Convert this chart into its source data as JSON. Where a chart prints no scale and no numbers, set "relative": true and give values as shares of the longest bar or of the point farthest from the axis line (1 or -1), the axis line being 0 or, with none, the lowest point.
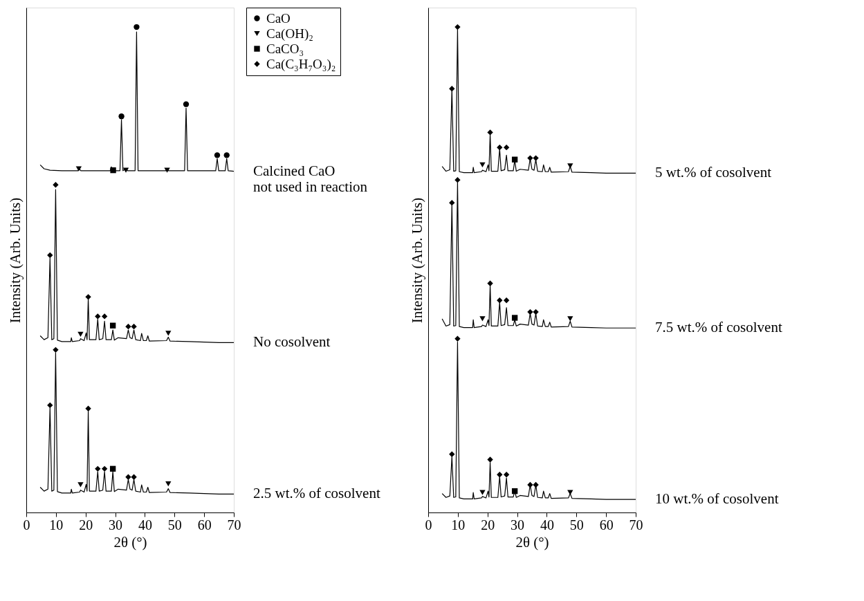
{
  "chart_data": [
    {
      "type": "line",
      "xlabel": "2θ (°)",
      "ylabel": "Intensity (Arb. Units)",
      "xlim": [
        0,
        70
      ],
      "xticks": [
        0,
        10,
        20,
        30,
        40,
        50,
        60,
        70
      ],
      "relative": true,
      "legend": "right",
      "grid": false,
      "series": [
        {
          "name": "Calcined CaO\nnot used in reaction",
          "color": "#000000",
          "x": [
            4.7,
            6,
            8,
            12,
            17.4,
            17.9,
            18.4,
            28.3,
            28.7,
            29.1,
            31.6,
            32.1,
            32.6,
            33.6,
            34.2,
            36.7,
            37.2,
            37.7,
            47.1,
            47.5,
            48,
            53.4,
            53.9,
            54.4,
            63.9,
            64.4,
            64.9,
            67.1,
            67.6,
            68.1,
            70
          ],
          "values": [
            0.716,
            0.708,
            0.705,
            0.704,
            0.704,
            0.708,
            0.704,
            0.704,
            0.712,
            0.704,
            0.704,
            0.809,
            0.704,
            0.708,
            0.704,
            0.704,
            0.99,
            0.704,
            0.704,
            0.707,
            0.704,
            0.704,
            0.833,
            0.704,
            0.704,
            0.729,
            0.704,
            0.704,
            0.729,
            0.704,
            0.703
          ]
        },
        {
          "name": "No cosolvent",
          "color": "#000000",
          "x": [
            4.7,
            6,
            7.3,
            8.0,
            8.6,
            9.3,
            9.9,
            10.5,
            12,
            15,
            15.2,
            15.5,
            18,
            18.3,
            19.5,
            20.2,
            20.5,
            20.9,
            21.3,
            23.5,
            24.1,
            24.6,
            25.8,
            26.4,
            26.9,
            28.7,
            29.2,
            29.7,
            31,
            33.8,
            34.4,
            35,
            35.7,
            36.3,
            36.9,
            38.5,
            38.9,
            39.5,
            40.5,
            41,
            41.5,
            47.3,
            47.9,
            48.5,
            55,
            60,
            65,
            70
          ],
          "values": [
            0.364,
            0.356,
            0.36,
            0.524,
            0.356,
            0.358,
            0.665,
            0.355,
            0.352,
            0.352,
            0.36,
            0.352,
            0.354,
            0.358,
            0.354,
            0.37,
            0.356,
            0.44,
            0.356,
            0.356,
            0.398,
            0.356,
            0.358,
            0.394,
            0.356,
            0.356,
            0.376,
            0.355,
            0.36,
            0.358,
            0.376,
            0.36,
            0.358,
            0.376,
            0.356,
            0.354,
            0.369,
            0.354,
            0.354,
            0.364,
            0.353,
            0.354,
            0.361,
            0.353,
            0.352,
            0.351,
            0.35,
            0.35
          ]
        },
        {
          "name": "2.5 wt.% of cosolvent",
          "color": "#000000",
          "x": [
            4.7,
            6,
            7.3,
            8.0,
            8.6,
            9.3,
            9.9,
            10.5,
            12,
            15,
            15.2,
            15.5,
            18,
            18.3,
            19.5,
            20.2,
            20.5,
            20.9,
            21.3,
            23.5,
            24.1,
            24.6,
            25.8,
            26.4,
            26.9,
            28.7,
            29.2,
            29.7,
            31,
            33.8,
            34.4,
            35,
            35.7,
            36.3,
            36.9,
            38.5,
            38.9,
            39.5,
            40.5,
            41,
            41.5,
            47.3,
            47.9,
            48.5,
            55,
            60,
            65,
            70
          ],
          "values": [
            0.052,
            0.044,
            0.048,
            0.216,
            0.044,
            0.046,
            0.329,
            0.043,
            0.04,
            0.04,
            0.048,
            0.04,
            0.042,
            0.046,
            0.042,
            0.058,
            0.044,
            0.209,
            0.044,
            0.044,
            0.084,
            0.044,
            0.046,
            0.084,
            0.044,
            0.044,
            0.084,
            0.043,
            0.048,
            0.046,
            0.068,
            0.048,
            0.046,
            0.068,
            0.044,
            0.042,
            0.057,
            0.042,
            0.042,
            0.052,
            0.041,
            0.042,
            0.049,
            0.041,
            0.04,
            0.039,
            0.038,
            0.038
          ]
        },
        {
          "type": "scatter",
          "name": "CaO",
          "marker": "circle",
          "color": "#000000",
          "x": [
            32.1,
            37.2,
            53.9,
            64.4,
            67.6
          ],
          "values": [
            0.816,
            1.0,
            0.841,
            0.736,
            0.736
          ]
        },
        {
          "type": "scatter",
          "name": "Ca(OH)₂",
          "marker": "triangle",
          "color": "#000000",
          "x": [
            17.7,
            33.6,
            47.5,
            18.3,
            47.9,
            18.3,
            47.9
          ],
          "values": [
            0.708,
            0.705,
            0.705,
            0.367,
            0.369,
            0.057,
            0.059
          ]
        },
        {
          "type": "scatter",
          "name": "CaCO₃",
          "marker": "square",
          "color": "#000000",
          "x": [
            29.3,
            29.2,
            29.2
          ],
          "values": [
            0.705,
            0.385,
            0.09
          ]
        },
        {
          "type": "scatter",
          "name": "Ca(C₃H₇O₃)₂",
          "marker": "diamond",
          "color": "#000000",
          "x": [
            8.0,
            9.9,
            20.9,
            24.1,
            26.4,
            34.4,
            36.3,
            8.0,
            9.9,
            20.9,
            24.1,
            26.4,
            34.4,
            36.3
          ],
          "values": [
            0.53,
            0.675,
            0.444,
            0.404,
            0.404,
            0.383,
            0.383,
            0.221,
            0.335,
            0.214,
            0.09,
            0.09,
            0.073,
            0.073
          ]
        }
      ]
    },
    {
      "type": "line",
      "xlabel": "2θ (°)",
      "ylabel": "Intensity (Arb. Units)",
      "xlim": [
        0,
        70
      ],
      "xticks": [
        0,
        10,
        20,
        30,
        40,
        50,
        60,
        70
      ],
      "relative": true,
      "grid": false,
      "series": [
        {
          "name": "5 wt.% of cosolvent",
          "color": "#000000",
          "x": [
            4.7,
            6,
            7.3,
            8.0,
            8.6,
            9.3,
            9.9,
            10.5,
            12,
            15,
            15.2,
            15.5,
            18,
            18.3,
            19.5,
            20.2,
            20.5,
            20.9,
            21.3,
            23.5,
            24.1,
            24.6,
            25.8,
            26.4,
            26.9,
            28.7,
            29.2,
            29.7,
            31,
            33.8,
            34.4,
            35,
            35.7,
            36.3,
            36.9,
            38.5,
            38.9,
            39.5,
            40.5,
            41,
            41.5,
            47.3,
            47.9,
            48.5,
            55,
            60,
            65,
            70
          ],
          "values": [
            0.713,
            0.703,
            0.706,
            0.872,
            0.703,
            0.704,
            0.995,
            0.702,
            0.7,
            0.7,
            0.711,
            0.7,
            0.702,
            0.705,
            0.702,
            0.716,
            0.704,
            0.78,
            0.703,
            0.703,
            0.749,
            0.704,
            0.706,
            0.736,
            0.704,
            0.704,
            0.726,
            0.703,
            0.707,
            0.705,
            0.729,
            0.707,
            0.705,
            0.727,
            0.703,
            0.702,
            0.716,
            0.702,
            0.702,
            0.711,
            0.701,
            0.702,
            0.713,
            0.701,
            0.7,
            0.699,
            0.699,
            0.699
          ]
        },
        {
          "name": "7.5 wt.% of cosolvent",
          "color": "#000000",
          "x": [
            4.7,
            6,
            7.3,
            8.0,
            8.6,
            9.3,
            9.9,
            10.5,
            12,
            15,
            15.2,
            15.5,
            18,
            18.3,
            19.5,
            20.2,
            20.5,
            20.9,
            21.3,
            23.5,
            24.1,
            24.6,
            25.8,
            26.4,
            26.9,
            28.7,
            29.2,
            29.7,
            31,
            33.8,
            34.4,
            35,
            35.7,
            36.3,
            36.9,
            38.5,
            38.9,
            39.5,
            40.5,
            41,
            41.5,
            47.3,
            47.9,
            48.5,
            55,
            60,
            65,
            70
          ],
          "values": [
            0.399,
            0.384,
            0.387,
            0.636,
            0.384,
            0.385,
            0.681,
            0.383,
            0.381,
            0.381,
            0.397,
            0.381,
            0.383,
            0.386,
            0.383,
            0.397,
            0.385,
            0.468,
            0.384,
            0.384,
            0.433,
            0.385,
            0.387,
            0.422,
            0.385,
            0.385,
            0.397,
            0.384,
            0.388,
            0.386,
            0.41,
            0.388,
            0.386,
            0.41,
            0.384,
            0.383,
            0.397,
            0.383,
            0.383,
            0.392,
            0.382,
            0.383,
            0.394,
            0.382,
            0.381,
            0.38,
            0.38,
            0.38
          ]
        },
        {
          "name": "10 wt.% of cosolvent",
          "color": "#000000",
          "x": [
            4.7,
            6,
            7.3,
            8.0,
            8.6,
            9.3,
            9.9,
            10.5,
            12,
            15,
            15.2,
            15.5,
            18,
            18.3,
            19.5,
            20.2,
            20.5,
            20.9,
            21.3,
            23.5,
            24.1,
            24.6,
            25.8,
            26.4,
            26.9,
            28.7,
            29.2,
            29.7,
            31,
            33.8,
            34.4,
            35,
            35.7,
            36.3,
            36.9,
            38.5,
            38.9,
            39.5,
            40.5,
            41,
            41.5,
            47.3,
            47.9,
            48.5,
            55,
            60,
            65,
            70
          ],
          "values": [
            0.039,
            0.031,
            0.034,
            0.115,
            0.031,
            0.032,
            0.351,
            0.03,
            0.028,
            0.028,
            0.041,
            0.028,
            0.03,
            0.033,
            0.03,
            0.044,
            0.032,
            0.103,
            0.031,
            0.031,
            0.074,
            0.032,
            0.034,
            0.071,
            0.032,
            0.032,
            0.045,
            0.031,
            0.035,
            0.033,
            0.057,
            0.035,
            0.033,
            0.057,
            0.031,
            0.03,
            0.044,
            0.03,
            0.03,
            0.039,
            0.029,
            0.03,
            0.039,
            0.029,
            0.028,
            0.027,
            0.027,
            0.027
          ]
        },
        {
          "type": "scatter",
          "marker": "triangle",
          "color": "#000000",
          "x": [
            18.3,
            47.9,
            18.3,
            47.9,
            18.3,
            47.9
          ],
          "values": [
            0.716,
            0.714,
            0.399,
            0.399,
            0.041,
            0.041
          ]
        },
        {
          "type": "scatter",
          "marker": "square",
          "color": "#000000",
          "x": [
            29.2,
            29.2,
            29.2
          ],
          "values": [
            0.727,
            0.401,
            0.044
          ]
        },
        {
          "type": "scatter",
          "marker": "diamond",
          "color": "#000000",
          "x": [
            8.0,
            9.9,
            20.9,
            24.1,
            26.4,
            34.4,
            36.3,
            8.0,
            9.9,
            20.9,
            24.1,
            26.4,
            34.4,
            36.3,
            8.0,
            9.9,
            20.9,
            24.1,
            26.4,
            34.4,
            36.3
          ],
          "values": [
            0.873,
            1.0,
            0.783,
            0.752,
            0.752,
            0.73,
            0.73,
            0.638,
            0.685,
            0.472,
            0.437,
            0.437,
            0.413,
            0.413,
            0.12,
            0.358,
            0.109,
            0.078,
            0.078,
            0.057,
            0.057
          ]
        }
      ]
    }
  ]
}
